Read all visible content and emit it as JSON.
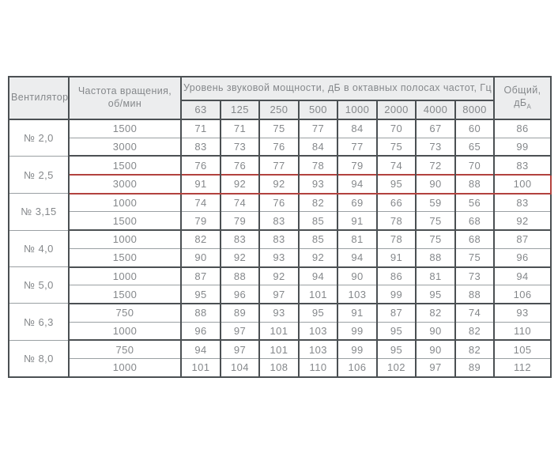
{
  "colors": {
    "border_dark": "#4b5053",
    "border_light": "#9aa0a3",
    "header_bg": "#ecedee",
    "text": "#85888b",
    "highlight": "#b2423e"
  },
  "table": {
    "header": {
      "fan": "Вентилятор",
      "rpm": "Частота вращения, об/мин",
      "levels": "Уровень звуковой мощности, дБ в октавных полосах частот, Гц",
      "total": "Общий, дБ",
      "total_sub": "А"
    },
    "frequencies": [
      "63",
      "125",
      "250",
      "500",
      "1000",
      "2000",
      "4000",
      "8000"
    ],
    "groups": [
      {
        "fan": "№ 2,0",
        "rows": [
          {
            "rpm": "1500",
            "levels": [
              71,
              71,
              75,
              77,
              84,
              70,
              67,
              60
            ],
            "total": 86
          },
          {
            "rpm": "3000",
            "levels": [
              83,
              73,
              76,
              84,
              77,
              75,
              73,
              65
            ],
            "total": 99
          }
        ]
      },
      {
        "fan": "№ 2,5",
        "rows": [
          {
            "rpm": "1500",
            "levels": [
              76,
              76,
              77,
              78,
              79,
              74,
              72,
              70
            ],
            "total": 83
          },
          {
            "rpm": "3000",
            "levels": [
              91,
              92,
              92,
              93,
              94,
              95,
              90,
              88
            ],
            "total": 100,
            "highlighted": true
          }
        ]
      },
      {
        "fan": "№ 3,15",
        "rows": [
          {
            "rpm": "1000",
            "levels": [
              74,
              74,
              76,
              82,
              69,
              66,
              59,
              56
            ],
            "total": 83
          },
          {
            "rpm": "1500",
            "levels": [
              79,
              79,
              83,
              85,
              91,
              78,
              75,
              68
            ],
            "total": 92
          }
        ]
      },
      {
        "fan": "№ 4,0",
        "rows": [
          {
            "rpm": "1000",
            "levels": [
              82,
              83,
              83,
              85,
              81,
              78,
              75,
              68
            ],
            "total": 87
          },
          {
            "rpm": "1500",
            "levels": [
              90,
              92,
              93,
              92,
              94,
              91,
              88,
              75
            ],
            "total": 96
          }
        ]
      },
      {
        "fan": "№ 5,0",
        "rows": [
          {
            "rpm": "1000",
            "levels": [
              87,
              88,
              92,
              94,
              90,
              86,
              81,
              73
            ],
            "total": 94
          },
          {
            "rpm": "1500",
            "levels": [
              95,
              96,
              97,
              101,
              103,
              99,
              95,
              88
            ],
            "total": 106
          }
        ]
      },
      {
        "fan": "№ 6,3",
        "rows": [
          {
            "rpm": "750",
            "levels": [
              88,
              89,
              93,
              95,
              91,
              87,
              82,
              74
            ],
            "total": 93
          },
          {
            "rpm": "1000",
            "levels": [
              96,
              97,
              101,
              103,
              99,
              95,
              90,
              82
            ],
            "total": 110
          }
        ]
      },
      {
        "fan": "№ 8,0",
        "rows": [
          {
            "rpm": "750",
            "levels": [
              94,
              97,
              101,
              103,
              99,
              95,
              90,
              82
            ],
            "total": 105
          },
          {
            "rpm": "1000",
            "levels": [
              101,
              104,
              108,
              110,
              106,
              102,
              97,
              89
            ],
            "total": 112
          }
        ]
      }
    ]
  }
}
